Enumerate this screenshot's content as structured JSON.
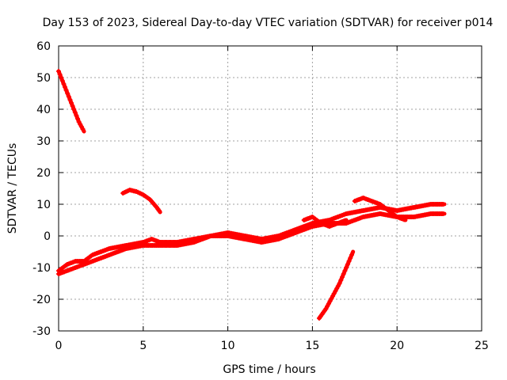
{
  "chart_data": {
    "type": "scatter",
    "title": "Day 153 of 2023, Sidereal Day-to-day VTEC variation (SDTVAR) for receiver p014",
    "xlabel": "GPS time / hours",
    "ylabel": "SDTVAR / TECUs",
    "xlim": [
      0,
      25
    ],
    "ylim": [
      -30,
      60
    ],
    "xticks": [
      0,
      5,
      10,
      15,
      20,
      25
    ],
    "yticks": [
      -30,
      -20,
      -10,
      0,
      10,
      20,
      30,
      40,
      50,
      60
    ],
    "grid": true,
    "marker": "plus",
    "series_color": "#ff0000",
    "series": [
      {
        "name": "arc-1",
        "x": [
          0.0,
          0.3,
          0.6,
          0.9,
          1.2,
          1.5
        ],
        "y": [
          52,
          48,
          44,
          40,
          36,
          33
        ]
      },
      {
        "name": "arc-2",
        "x": [
          3.8,
          4.2,
          4.6,
          5.0,
          5.4,
          5.8,
          6.0
        ],
        "y": [
          13.5,
          14.5,
          14.0,
          13.0,
          11.5,
          9.0,
          7.5
        ]
      },
      {
        "name": "arc-3a",
        "x": [
          0.0,
          0.5,
          1.0,
          1.5,
          2.0,
          3.0,
          4.0,
          5.0,
          5.5,
          6.0,
          7.0,
          8.0,
          9.0,
          10.0,
          11.0,
          12.0,
          13.0,
          14.0,
          15.0,
          16.0,
          17.0,
          18.0,
          19.0,
          20.0,
          21.0,
          22.0,
          22.8
        ],
        "y": [
          -11,
          -9,
          -8,
          -8,
          -6,
          -4,
          -3,
          -2,
          -1,
          -2,
          -2,
          -1,
          0,
          1,
          0,
          -1,
          0,
          2,
          4,
          5,
          7,
          8,
          9,
          8,
          9,
          10,
          10
        ]
      },
      {
        "name": "arc-3b",
        "x": [
          0.0,
          0.5,
          1.0,
          2.0,
          3.0,
          4.0,
          5.0,
          6.0,
          7.0,
          8.0,
          9.0,
          10.0,
          11.0,
          12.0,
          13.0,
          14.0,
          15.0,
          16.0,
          17.0,
          18.0,
          19.0,
          20.0,
          21.0,
          22.0,
          22.8
        ],
        "y": [
          -12,
          -11,
          -10,
          -8,
          -6,
          -4,
          -3,
          -3,
          -3,
          -2,
          0,
          0,
          -1,
          -2,
          -1,
          1,
          3,
          4,
          4,
          6,
          7,
          6,
          6,
          7,
          7
        ]
      },
      {
        "name": "arc-3c",
        "x": [
          17.5,
          18.0,
          18.5,
          19.0,
          19.5,
          20.0,
          20.5
        ],
        "y": [
          11,
          12,
          11,
          10,
          8,
          6,
          5
        ]
      },
      {
        "name": "arc-3d",
        "x": [
          14.5,
          15.0,
          15.5,
          16.0,
          16.5,
          17.0
        ],
        "y": [
          5,
          6,
          4,
          3,
          4,
          5
        ]
      },
      {
        "name": "arc-4",
        "x": [
          15.4,
          15.8,
          16.2,
          16.6,
          17.0,
          17.4
        ],
        "y": [
          -26,
          -23,
          -19,
          -15,
          -10,
          -5
        ]
      }
    ]
  }
}
